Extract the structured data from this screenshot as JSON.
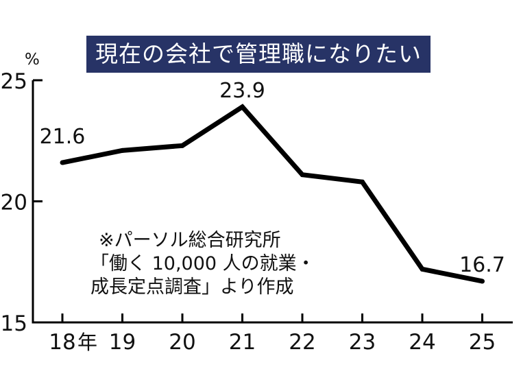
{
  "chart_data": {
    "type": "line",
    "title": "現在の会社で管理職になりたい",
    "unit_label": "%",
    "x_suffix": "年",
    "categories": [
      "18",
      "19",
      "20",
      "21",
      "22",
      "23",
      "24",
      "25"
    ],
    "series": [
      {
        "values": [
          21.6,
          22.1,
          22.3,
          23.9,
          21.1,
          20.8,
          17.2,
          16.7
        ]
      }
    ],
    "data_labels": [
      {
        "index": 0,
        "text": "21.6"
      },
      {
        "index": 3,
        "text": "23.9"
      },
      {
        "index": 7,
        "text": "16.7"
      }
    ],
    "ylim": [
      15,
      25
    ],
    "yticks": [
      15,
      20,
      25
    ],
    "line_color": "#000000",
    "grid": false
  },
  "note": {
    "line1": "※パーソル総合研究所",
    "line2": "「働く 10,000 人の就業・",
    "line3": "成長定点調査」より作成"
  }
}
